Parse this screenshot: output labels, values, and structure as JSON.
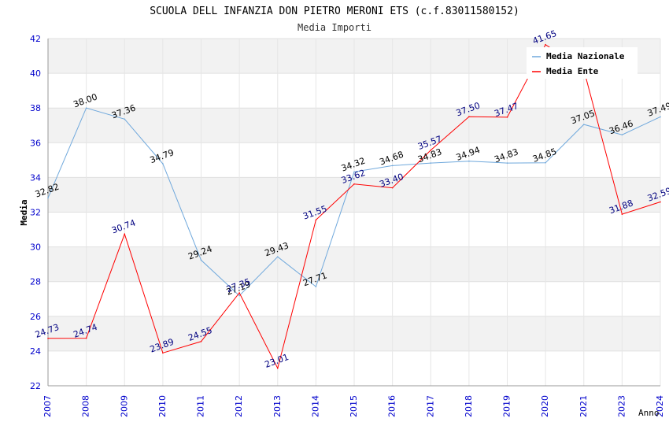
{
  "chart_data": {
    "type": "line",
    "title": "SCUOLA DELL INFANZIA DON PIETRO MERONI ETS (c.f.83011580152)",
    "subtitle": "Media Importi",
    "xlabel": "Anno",
    "ylabel": "Media",
    "ylim": [
      22,
      42
    ],
    "yticks": [
      22,
      24,
      26,
      28,
      30,
      32,
      34,
      36,
      38,
      40,
      42
    ],
    "categories": [
      "2007",
      "2008",
      "2009",
      "2010",
      "2011",
      "2012",
      "2013",
      "2014",
      "2015",
      "2016",
      "2017",
      "2018",
      "2019",
      "2020",
      "2021",
      "2023",
      "2024"
    ],
    "legend_position": "top-right",
    "grid": true,
    "series": [
      {
        "name": "Media Nazionale",
        "color": "#6fa8dc",
        "label_color": "#000000",
        "values": [
          32.82,
          38.0,
          37.36,
          34.79,
          29.24,
          27.19,
          29.43,
          27.71,
          34.32,
          34.68,
          34.83,
          34.94,
          34.83,
          34.85,
          37.05,
          36.46,
          37.49
        ],
        "labels": [
          "32.82",
          "38.00",
          "37.36",
          "34.79",
          "29.24",
          "27.19",
          "29.43",
          "27.71",
          "34.32",
          "34.68",
          "34.83",
          "34.94",
          "34.83",
          "34.85",
          "37.05",
          "36.46",
          "37.49"
        ]
      },
      {
        "name": "Media Ente",
        "color": "#ff0000",
        "label_color": "#000080",
        "values": [
          24.73,
          24.74,
          30.74,
          23.89,
          24.55,
          27.35,
          23.01,
          31.55,
          33.62,
          33.4,
          35.57,
          37.5,
          37.47,
          41.65,
          40.2,
          31.88,
          32.59
        ],
        "labels": [
          "24.73",
          "24.74",
          "30.74",
          "23.89",
          "24.55",
          "27.35",
          "23.01",
          "31.55",
          "33.62",
          "33.40",
          "35.57",
          "37.50",
          "37.47",
          "41.65",
          "",
          "31.88",
          "32.59"
        ]
      }
    ]
  }
}
